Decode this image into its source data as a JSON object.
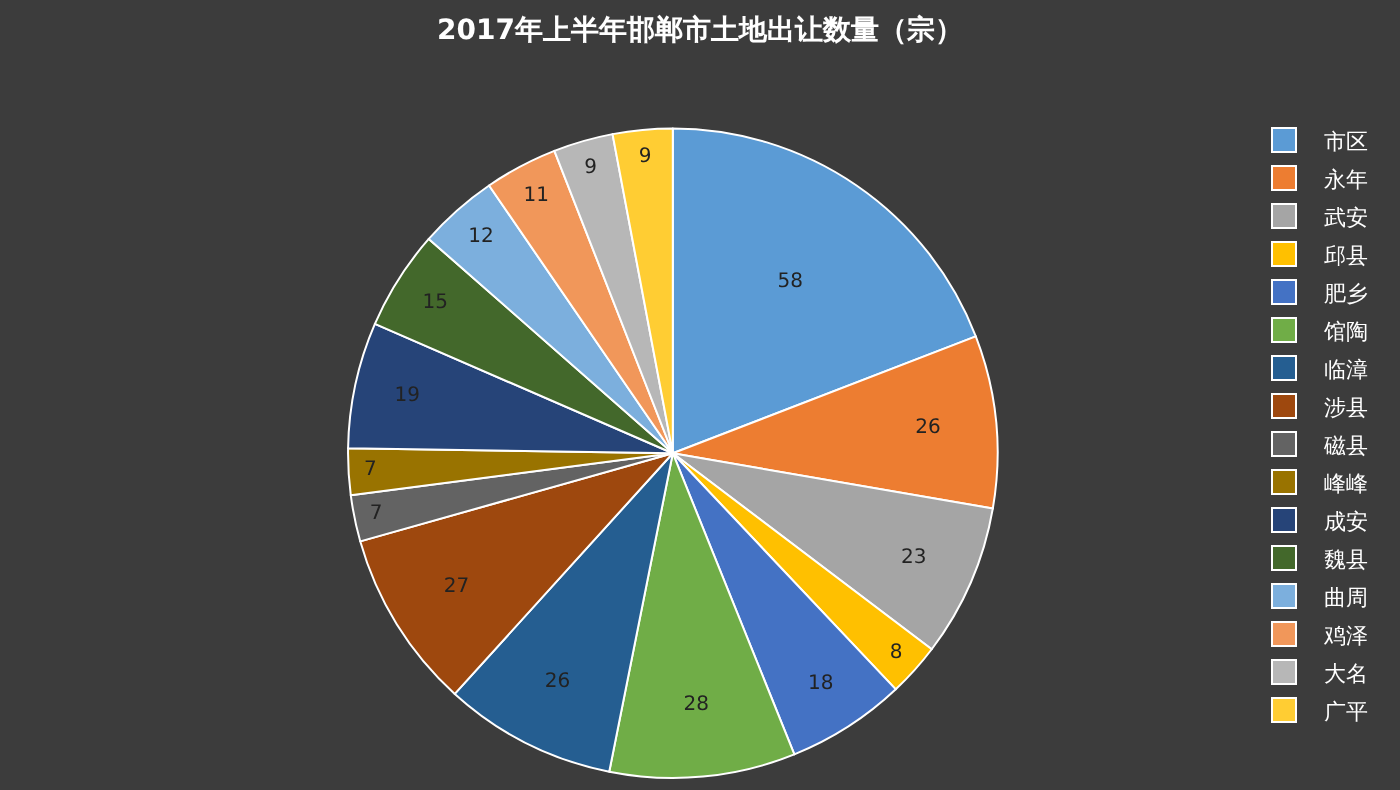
{
  "chart_data": {
    "type": "pie",
    "title": "2017年上半年邯郸市土地出让数量（宗）",
    "categories": [
      "市区",
      "永年",
      "武安",
      "邱县",
      "肥乡",
      "馆陶",
      "临漳",
      "涉县",
      "磁县",
      "峰峰",
      "成安",
      "魏县",
      "曲周",
      "鸡泽",
      "大名",
      "广平"
    ],
    "values": [
      58,
      26,
      23,
      8,
      18,
      28,
      26,
      27,
      7,
      7,
      19,
      15,
      12,
      11,
      9,
      9
    ],
    "colors": [
      "#5b9bd5",
      "#ed7d31",
      "#a5a5a5",
      "#ffc000",
      "#4472c4",
      "#70ad47",
      "#255e91",
      "#9e480e",
      "#636363",
      "#997300",
      "#264478",
      "#43682b",
      "#7cafdd",
      "#f1975a",
      "#b7b7b7",
      "#ffcd33"
    ],
    "data_labels": true,
    "legend": "right"
  }
}
